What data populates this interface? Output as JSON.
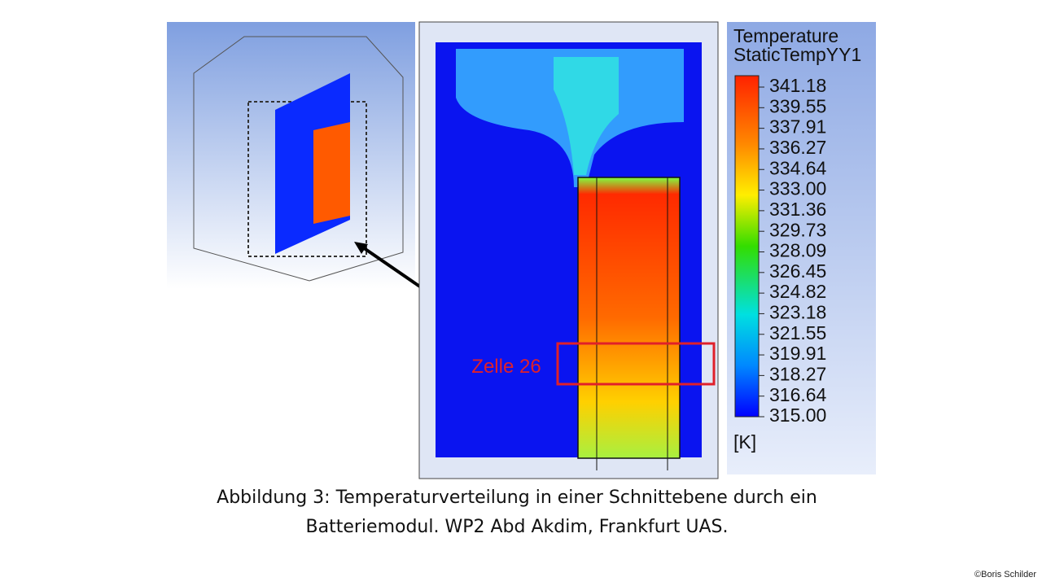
{
  "legend": {
    "title": "Temperature",
    "subtitle": "StaticTempYY1",
    "labels": [
      "341.18",
      "339.55",
      "337.91",
      "336.27",
      "334.64",
      "333.00",
      "331.36",
      "329.73",
      "328.09",
      "326.45",
      "324.82",
      "323.18",
      "321.55",
      "319.91",
      "318.27",
      "316.64",
      "315.00"
    ],
    "unit": "[K]"
  },
  "annotation": "Zelle 26",
  "caption": {
    "line1": "Abbildung 3: Temperaturverteilung  in einer Schnittebene durch ein",
    "line2": "Batteriemodul. WP2 Abd Akdim, Frankfurt UAS."
  },
  "credit": "©Boris Schilder"
}
